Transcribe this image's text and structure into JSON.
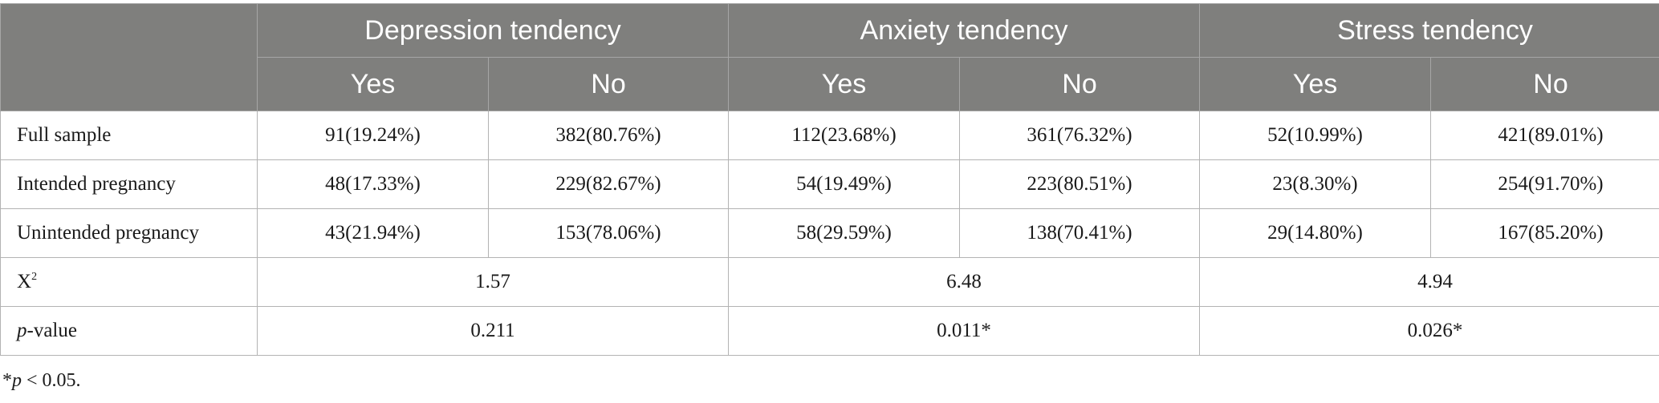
{
  "groups": [
    {
      "label": "Depression tendency",
      "yes": "Yes",
      "no": "No"
    },
    {
      "label": "Anxiety tendency",
      "yes": "Yes",
      "no": "No"
    },
    {
      "label": "Stress tendency",
      "yes": "Yes",
      "no": "No"
    }
  ],
  "rows": [
    {
      "label": "Full sample",
      "cells": [
        "91(19.24%)",
        "382(80.76%)",
        "112(23.68%)",
        "361(76.32%)",
        "52(10.99%)",
        "421(89.01%)"
      ]
    },
    {
      "label": "Intended pregnancy",
      "cells": [
        "48(17.33%)",
        "229(82.67%)",
        "54(19.49%)",
        "223(80.51%)",
        "23(8.30%)",
        "254(91.70%)"
      ]
    },
    {
      "label": "Unintended pregnancy",
      "cells": [
        "43(21.94%)",
        "153(78.06%)",
        "58(29.59%)",
        "138(70.41%)",
        "29(14.80%)",
        "167(85.20%)"
      ]
    }
  ],
  "chi": {
    "label": "X",
    "sup": "2",
    "values": [
      "1.57",
      "6.48",
      "4.94"
    ]
  },
  "pvalue": {
    "label_italic": "p",
    "label_rest": "-value",
    "values": [
      "0.211",
      "0.011*",
      "0.026*"
    ]
  },
  "footnote": {
    "star": "*",
    "italic": "p",
    "rest": " < 0.05."
  }
}
